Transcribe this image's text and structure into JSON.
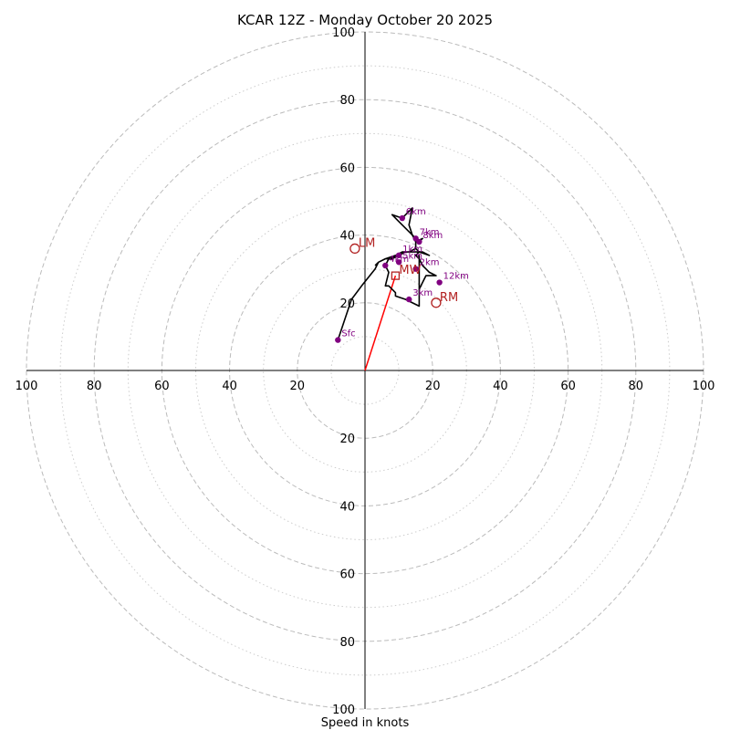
{
  "chart_data": {
    "type": "hodograph",
    "title": "KCAR 12Z - Monday October 20 2025",
    "xlabel": "Speed in knots",
    "ring_max": 100,
    "major_rings": [
      20,
      40,
      60,
      80,
      100
    ],
    "minor_rings": [
      10,
      30,
      50,
      70,
      90
    ],
    "x_tick_labels": [
      "100",
      "80",
      "60",
      "40",
      "20",
      "20",
      "40",
      "60",
      "80",
      "100"
    ],
    "x_tick_values": [
      -100,
      -80,
      -60,
      -40,
      -20,
      20,
      40,
      60,
      80,
      100
    ],
    "y_tick_labels_top": [
      "20",
      "40",
      "60",
      "80",
      "100"
    ],
    "y_tick_labels_bottom": [
      "20",
      "40",
      "60",
      "80",
      "100"
    ],
    "y_tick_values": [
      20,
      40,
      60,
      80,
      100
    ],
    "trace": [
      [
        -8,
        9
      ],
      [
        -4,
        21
      ],
      [
        -1,
        25
      ],
      [
        3,
        30
      ],
      [
        4,
        32
      ],
      [
        6,
        33
      ],
      [
        8,
        33
      ],
      [
        10,
        34
      ],
      [
        12,
        35
      ],
      [
        14,
        35
      ],
      [
        16,
        35
      ],
      [
        15,
        34
      ],
      [
        16,
        33
      ],
      [
        17,
        31
      ],
      [
        18,
        30
      ],
      [
        19,
        29
      ],
      [
        21,
        28
      ],
      [
        20,
        28
      ],
      [
        18,
        28
      ],
      [
        17,
        26
      ],
      [
        16,
        24
      ],
      [
        16,
        26
      ],
      [
        16,
        28
      ],
      [
        16,
        30
      ],
      [
        16,
        32
      ],
      [
        16,
        33
      ],
      [
        16,
        34
      ],
      [
        16,
        30
      ],
      [
        16,
        27
      ],
      [
        16,
        19
      ],
      [
        12,
        21
      ],
      [
        9,
        22
      ],
      [
        9,
        23
      ],
      [
        7,
        25
      ],
      [
        6,
        25
      ],
      [
        7,
        29
      ],
      [
        6,
        31
      ],
      [
        7,
        33
      ],
      [
        10,
        34
      ],
      [
        12,
        35
      ],
      [
        15,
        35
      ],
      [
        17,
        35
      ],
      [
        19,
        34
      ],
      [
        16,
        35
      ],
      [
        15,
        36
      ],
      [
        15,
        38
      ],
      [
        14,
        40
      ],
      [
        13,
        43
      ],
      [
        14,
        48
      ],
      [
        12,
        46
      ],
      [
        11,
        45
      ],
      [
        8,
        46
      ],
      [
        10,
        44
      ],
      [
        12,
        42
      ],
      [
        14,
        40
      ],
      [
        16,
        38
      ],
      [
        17,
        39
      ],
      [
        15,
        38
      ],
      [
        15,
        36
      ],
      [
        13,
        35
      ],
      [
        11,
        35
      ],
      [
        9,
        34
      ],
      [
        6,
        33
      ],
      [
        4,
        32
      ],
      [
        3,
        31
      ]
    ],
    "height_points": [
      {
        "label": "Sfc",
        "u": -8,
        "v": 9
      },
      {
        "label": "1km",
        "u": 10,
        "v": 34
      },
      {
        "label": "2km",
        "u": 15,
        "v": 30
      },
      {
        "label": "3km",
        "u": 13,
        "v": 21
      },
      {
        "label": "4km",
        "u": 6,
        "v": 31
      },
      {
        "label": "5km",
        "u": 10,
        "v": 32
      },
      {
        "label": "6km",
        "u": 11,
        "v": 45
      },
      {
        "label": "7km",
        "u": 15,
        "v": 39
      },
      {
        "label": "8km",
        "u": 16,
        "v": 38
      },
      {
        "label": "12km",
        "u": 22,
        "v": 26
      }
    ],
    "storm_motions": [
      {
        "label": "LM",
        "u": -3,
        "v": 36,
        "marker": "circle"
      },
      {
        "label": "RM",
        "u": 21,
        "v": 20,
        "marker": "circle"
      },
      {
        "label": "MW",
        "u": 9,
        "v": 28,
        "marker": "square"
      }
    ],
    "storm_vector": {
      "u": 9,
      "v": 28
    },
    "colors": {
      "trace": "#000000",
      "height_points": "#800080",
      "storm_motion": "#b22222",
      "storm_vector": "#ff0000",
      "major_grid": "#bbbbbb",
      "minor_grid": "#cccccc"
    },
    "grid": true
  }
}
